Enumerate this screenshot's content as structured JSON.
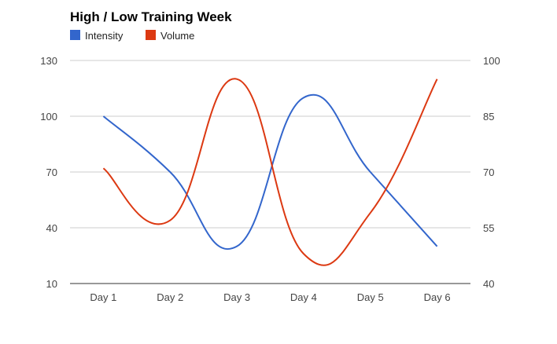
{
  "chart_data": {
    "type": "line",
    "title": "High / Low Training Week",
    "legend_position": "top-left",
    "categories": [
      "Day 1",
      "Day 2",
      "Day 3",
      "Day 4",
      "Day 5",
      "Day 6"
    ],
    "series": [
      {
        "name": "Intensity",
        "axis": "left",
        "color": "#3366cc",
        "values": [
          100,
          70,
          30,
          110,
          70,
          30
        ]
      },
      {
        "name": "Volume",
        "axis": "right",
        "color": "#dc3912",
        "values": [
          71,
          57,
          95,
          48,
          59,
          95
        ]
      }
    ],
    "left_axis": {
      "ylim": [
        10,
        130
      ],
      "ticks": [
        "130",
        "100",
        "70",
        "40",
        "10"
      ]
    },
    "right_axis": {
      "ylim": [
        40,
        100
      ],
      "ticks": [
        "100",
        "85",
        "70",
        "55",
        "40"
      ]
    },
    "grid": true,
    "smooth": true
  }
}
